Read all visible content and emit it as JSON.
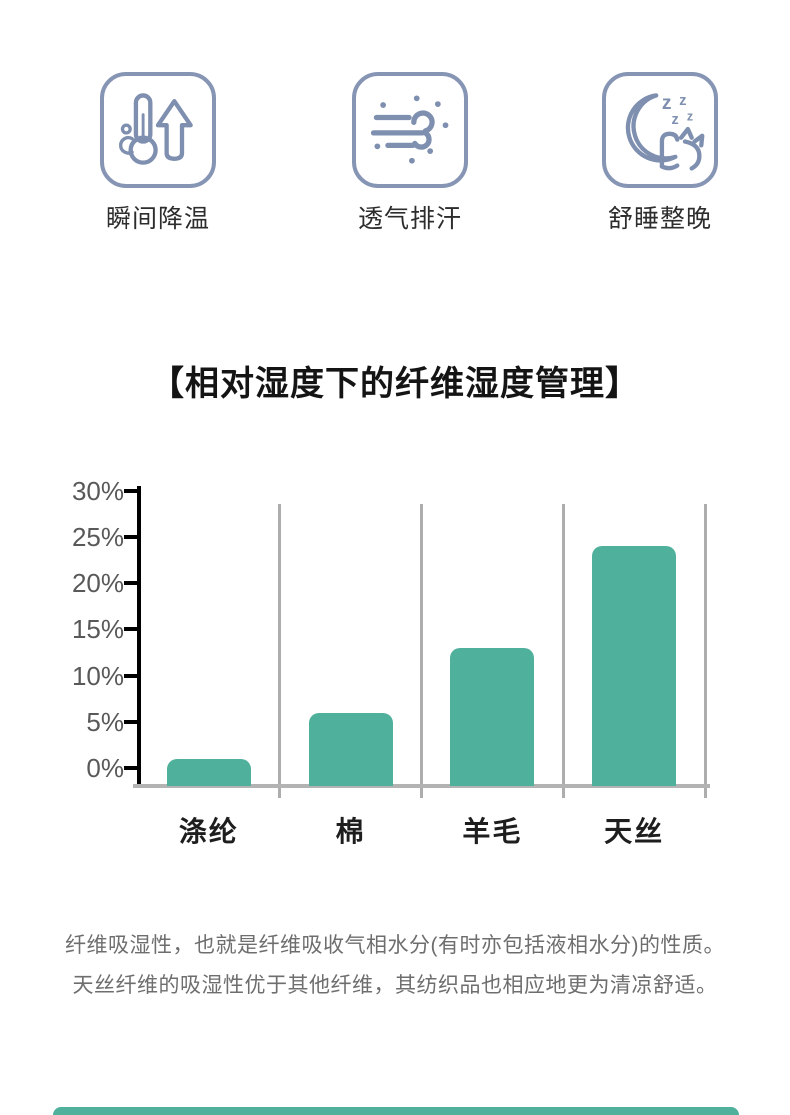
{
  "features": [
    {
      "label": "瞬间降温",
      "icon": "thermometer-arrow-up-icon"
    },
    {
      "label": "透气排汗",
      "icon": "wind-breathe-icon"
    },
    {
      "label": "舒睡整晚",
      "icon": "moon-sleep-icon"
    }
  ],
  "section_title": "【相对湿度下的纤维湿度管理】",
  "chart_data": {
    "type": "bar",
    "title": "相对湿度下的纤维湿度管理",
    "categories": [
      "涤纶",
      "棉",
      "羊毛",
      "天丝"
    ],
    "values": [
      1,
      6,
      13,
      24
    ],
    "xlabel": "",
    "ylabel": "",
    "ylim": [
      0,
      30
    ],
    "ytick_step": 5,
    "ytick_labels": [
      "0%",
      "5%",
      "10%",
      "15%",
      "20%",
      "25%",
      "30%"
    ],
    "bar_color": "#4FB19C",
    "grid": "vertical-category-separators",
    "legend": "none"
  },
  "description": {
    "line1": "纤维吸湿性，也就是纤维吸收气相水分(有时亦包括液相水分)的性质。",
    "line2": "天丝纤维的吸湿性优于其他纤维，其纺织品也相应地更为清凉舒适。"
  },
  "bottom_strip": {
    "color": "#4FB19C"
  },
  "colors": {
    "accent_teal": "#4FB19C",
    "icon_stroke": "#8191B1",
    "axis_black": "#000000",
    "grid_gray": "#ADADAD",
    "y_label_gray": "#595959",
    "x_label_dark": "#1E1E1E",
    "body_text_gray": "#6E6E6E",
    "background": "#FFFFFF"
  }
}
